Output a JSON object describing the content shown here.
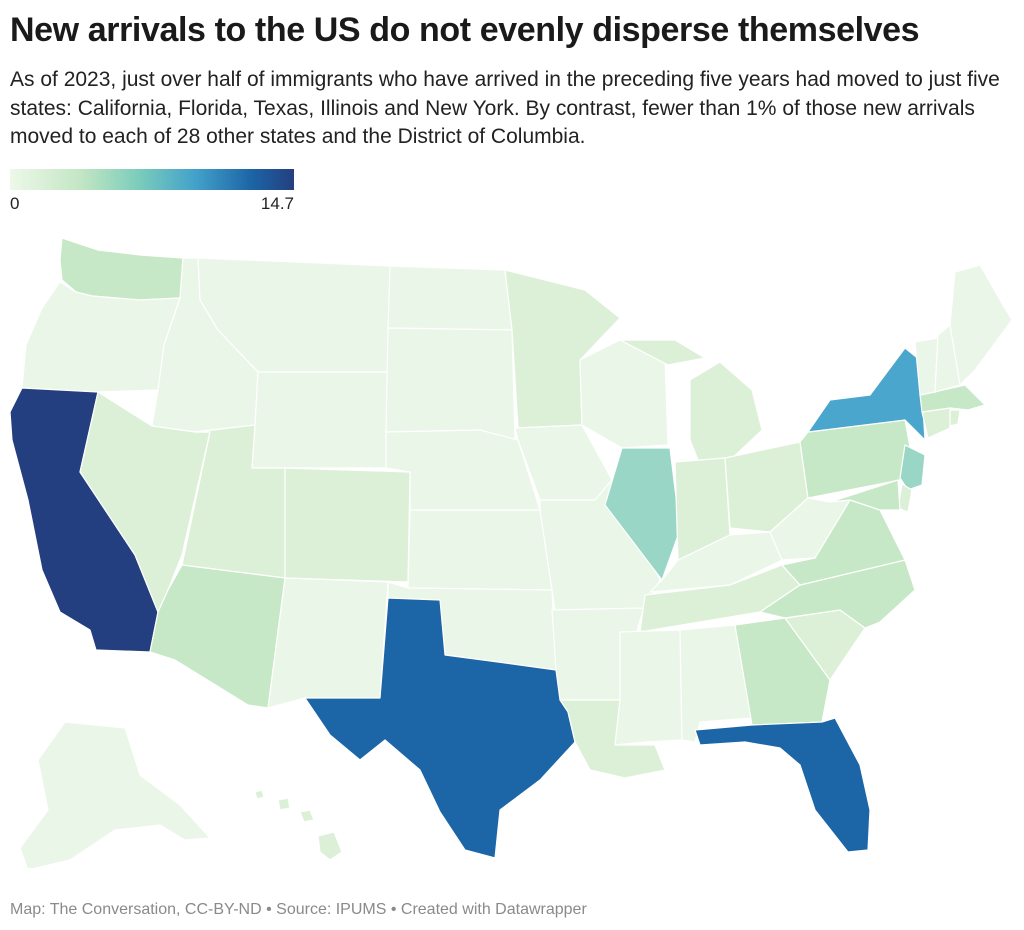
{
  "header": {
    "title": "New arrivals to the US do not evenly disperse themselves",
    "subtitle": "As of 2023, just over half of immigrants who have arrived in the preceding five years had moved to just five states: California, Florida, Texas, Illinois and New York. By contrast, fewer than 1% of those new arrivals moved to each of 28 other states and the District of Columbia."
  },
  "legend": {
    "min_label": "0",
    "max_label": "14.7",
    "min": 0,
    "max": 14.7
  },
  "colors": {
    "very_low": "#eaf6e7",
    "low": "#dcf0d7",
    "low_mid": "#c6e8c6",
    "mid": "#9ad6c5",
    "high_mid": "#4aa6cc",
    "high": "#1c65a6",
    "highest": "#243f80",
    "border": "#ffffff"
  },
  "map": {
    "states": [
      {
        "name": "Washington",
        "level": "low_mid"
      },
      {
        "name": "Oregon",
        "level": "very_low"
      },
      {
        "name": "California",
        "level": "highest"
      },
      {
        "name": "Idaho",
        "level": "very_low"
      },
      {
        "name": "Nevada",
        "level": "low"
      },
      {
        "name": "Montana",
        "level": "very_low"
      },
      {
        "name": "Wyoming",
        "level": "very_low"
      },
      {
        "name": "Utah",
        "level": "low"
      },
      {
        "name": "Arizona",
        "level": "low_mid"
      },
      {
        "name": "Colorado",
        "level": "low"
      },
      {
        "name": "New Mexico",
        "level": "very_low"
      },
      {
        "name": "North Dakota",
        "level": "very_low"
      },
      {
        "name": "South Dakota",
        "level": "very_low"
      },
      {
        "name": "Nebraska",
        "level": "very_low"
      },
      {
        "name": "Kansas",
        "level": "very_low"
      },
      {
        "name": "Oklahoma",
        "level": "very_low"
      },
      {
        "name": "Texas",
        "level": "high"
      },
      {
        "name": "Minnesota",
        "level": "low"
      },
      {
        "name": "Iowa",
        "level": "very_low"
      },
      {
        "name": "Missouri",
        "level": "very_low"
      },
      {
        "name": "Arkansas",
        "level": "very_low"
      },
      {
        "name": "Louisiana",
        "level": "low"
      },
      {
        "name": "Wisconsin",
        "level": "very_low"
      },
      {
        "name": "Illinois",
        "level": "mid"
      },
      {
        "name": "Michigan",
        "level": "low"
      },
      {
        "name": "Indiana",
        "level": "low"
      },
      {
        "name": "Ohio",
        "level": "low"
      },
      {
        "name": "Kentucky",
        "level": "very_low"
      },
      {
        "name": "Tennessee",
        "level": "low"
      },
      {
        "name": "Mississippi",
        "level": "very_low"
      },
      {
        "name": "Alabama",
        "level": "very_low"
      },
      {
        "name": "Georgia",
        "level": "low_mid"
      },
      {
        "name": "Florida",
        "level": "high"
      },
      {
        "name": "South Carolina",
        "level": "low"
      },
      {
        "name": "North Carolina",
        "level": "low_mid"
      },
      {
        "name": "Virginia",
        "level": "low_mid"
      },
      {
        "name": "West Virginia",
        "level": "very_low"
      },
      {
        "name": "Pennsylvania",
        "level": "low_mid"
      },
      {
        "name": "New York",
        "level": "high_mid"
      },
      {
        "name": "Vermont",
        "level": "very_low"
      },
      {
        "name": "New Hampshire",
        "level": "very_low"
      },
      {
        "name": "Maine",
        "level": "very_low"
      },
      {
        "name": "Massachusetts",
        "level": "low_mid"
      },
      {
        "name": "Rhode Island",
        "level": "low"
      },
      {
        "name": "Connecticut",
        "level": "low"
      },
      {
        "name": "New Jersey",
        "level": "mid"
      },
      {
        "name": "Delaware",
        "level": "low"
      },
      {
        "name": "Maryland",
        "level": "low_mid"
      },
      {
        "name": "Alaska",
        "level": "very_low"
      },
      {
        "name": "Hawaii",
        "level": "low"
      }
    ]
  },
  "footer": {
    "credit": "Map: The Conversation, CC-BY-ND • Source: IPUMS • Created with Datawrapper"
  }
}
